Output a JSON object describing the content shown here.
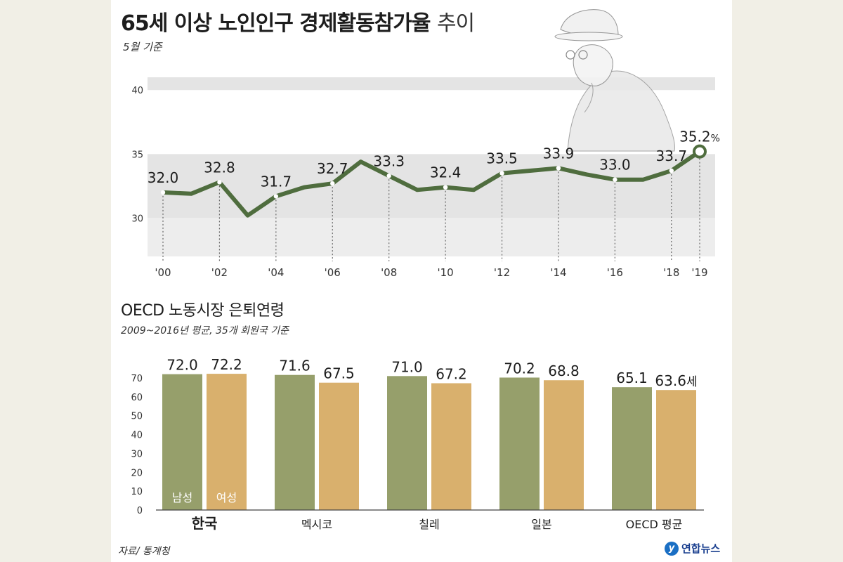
{
  "header": {
    "title_bold": "65세 이상 노인인구 경제활동참가율",
    "title_light": "추이",
    "subtitle": "5월 기준"
  },
  "oecd_section": {
    "title": "OECD 노동시장 은퇴연령",
    "subtitle": "2009~2016년 평균, 35개 회원국 기준"
  },
  "footer": {
    "source": "자료/ 통계청",
    "logo_text": "연합뉴스"
  },
  "colors": {
    "line": "#4f6d3e",
    "men": "#969f6b",
    "women": "#d9b06d",
    "band": "#e4e4e4"
  },
  "chart_data": [
    {
      "type": "line",
      "title": "65세 이상 노인인구 경제활동참가율 추이",
      "subtitle": "5월 기준",
      "ylim": [
        27,
        41
      ],
      "yticks": [
        30,
        35,
        40
      ],
      "x": [
        2000,
        2001,
        2002,
        2003,
        2004,
        2005,
        2006,
        2007,
        2008,
        2009,
        2010,
        2011,
        2012,
        2013,
        2014,
        2015,
        2016,
        2017,
        2018,
        2019
      ],
      "values": [
        32.0,
        31.9,
        32.8,
        30.2,
        31.7,
        32.4,
        32.7,
        34.4,
        33.3,
        32.2,
        32.4,
        32.2,
        33.5,
        33.7,
        33.9,
        33.4,
        33.0,
        33.0,
        33.7,
        35.2
      ],
      "xticks": [
        {
          "x": 2000,
          "label": "'00"
        },
        {
          "x": 2002,
          "label": "'02"
        },
        {
          "x": 2004,
          "label": "'04"
        },
        {
          "x": 2006,
          "label": "'06"
        },
        {
          "x": 2008,
          "label": "'08"
        },
        {
          "x": 2010,
          "label": "'10"
        },
        {
          "x": 2012,
          "label": "'12"
        },
        {
          "x": 2014,
          "label": "'14"
        },
        {
          "x": 2016,
          "label": "'16"
        },
        {
          "x": 2018,
          "label": "'18"
        },
        {
          "x": 2019,
          "label": "'19"
        }
      ],
      "labeled_points": [
        {
          "x": 2000,
          "label": "32.0"
        },
        {
          "x": 2002,
          "label": "32.8"
        },
        {
          "x": 2004,
          "label": "31.7"
        },
        {
          "x": 2006,
          "label": "32.7"
        },
        {
          "x": 2008,
          "label": "33.3"
        },
        {
          "x": 2010,
          "label": "32.4"
        },
        {
          "x": 2012,
          "label": "33.5"
        },
        {
          "x": 2014,
          "label": "33.9"
        },
        {
          "x": 2016,
          "label": "33.0"
        },
        {
          "x": 2018,
          "label": "33.7"
        },
        {
          "x": 2019,
          "label": "35.2",
          "unit": "%",
          "highlight": true
        }
      ],
      "bands": [
        [
          30,
          35
        ],
        [
          40,
          41
        ]
      ]
    },
    {
      "type": "bar",
      "title": "OECD 노동시장 은퇴연령",
      "subtitle": "2009~2016년 평균, 35개 회원국 기준",
      "ylim": [
        0,
        72
      ],
      "yticks": [
        0,
        10,
        20,
        30,
        40,
        50,
        60,
        70
      ],
      "categories": [
        "한국",
        "멕시코",
        "칠레",
        "일본",
        "OECD 평균"
      ],
      "bold_category": "한국",
      "series": [
        {
          "name": "남성",
          "values": [
            72.0,
            71.6,
            71.0,
            70.2,
            65.1
          ]
        },
        {
          "name": "여성",
          "values": [
            72.2,
            67.5,
            67.2,
            68.8,
            63.6
          ]
        }
      ],
      "value_labels": [
        [
          "72.0",
          "72.2"
        ],
        [
          "71.6",
          "67.5"
        ],
        [
          "71.0",
          "67.2"
        ],
        [
          "70.2",
          "68.8"
        ],
        [
          "65.1",
          "63.6"
        ]
      ],
      "unit_suffix": "세"
    }
  ]
}
